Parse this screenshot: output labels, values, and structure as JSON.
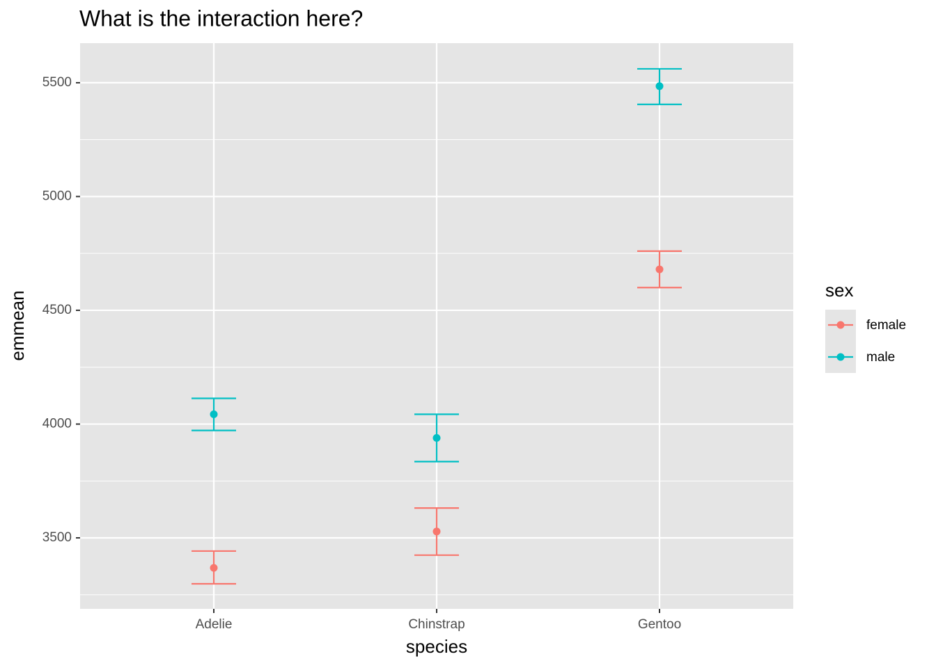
{
  "chart_data": {
    "type": "errorbar",
    "title": "What is the interaction here?",
    "x_label": "species",
    "y_label": "emmean",
    "categories": [
      "Adelie",
      "Chinstrap",
      "Gentoo"
    ],
    "series": [
      {
        "name": "female",
        "color": "#f8766d",
        "values": [
          3368,
          3528,
          4680
        ],
        "lower": [
          3298,
          3424,
          4600
        ],
        "upper": [
          3442,
          3631,
          4760
        ]
      },
      {
        "name": "male",
        "color": "#00bfc4",
        "values": [
          4043,
          3939,
          5485
        ],
        "lower": [
          3972,
          3835,
          5405
        ],
        "upper": [
          4113,
          4043,
          5561
        ]
      }
    ],
    "ylim": [
      3188,
      5674
    ],
    "yticks": [
      3500,
      4000,
      4500,
      5000,
      5500
    ],
    "yminor": [
      3250,
      3750,
      4250,
      4750,
      5250
    ],
    "legend_title": "sex",
    "legend": "right",
    "grid": true
  }
}
